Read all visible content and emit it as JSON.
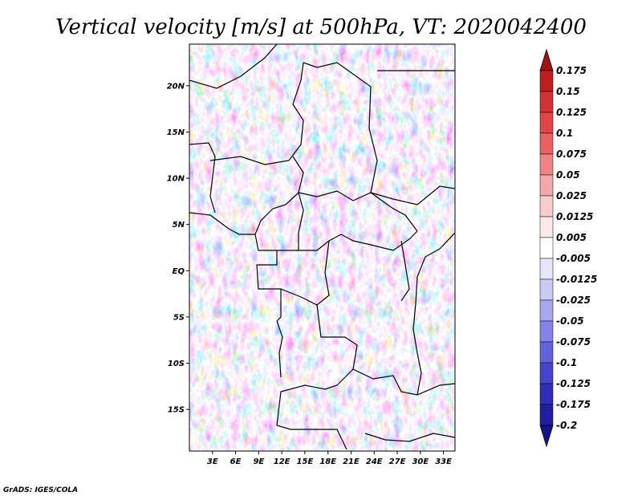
{
  "title": "Vertical velocity [m/s] at 500hPa, VT: 2020042400",
  "credit": "GrADS: IGES/COLA",
  "chart_data": {
    "type": "heatmap",
    "variable": "Vertical velocity",
    "units": "m/s",
    "level": "500hPa",
    "valid_time": "2020042400",
    "lon_range": [
      0,
      34.5
    ],
    "lat_range": [
      -19.5,
      24.5
    ],
    "x_ticks": [
      {
        "value": 3,
        "label": "3E"
      },
      {
        "value": 6,
        "label": "6E"
      },
      {
        "value": 9,
        "label": "9E"
      },
      {
        "value": 12,
        "label": "12E"
      },
      {
        "value": 15,
        "label": "15E"
      },
      {
        "value": 18,
        "label": "18E"
      },
      {
        "value": 21,
        "label": "21E"
      },
      {
        "value": 24,
        "label": "24E"
      },
      {
        "value": 27,
        "label": "27E"
      },
      {
        "value": 30,
        "label": "30E"
      },
      {
        "value": 33,
        "label": "33E"
      }
    ],
    "y_ticks": [
      {
        "value": 20,
        "label": "20N"
      },
      {
        "value": 15,
        "label": "15N"
      },
      {
        "value": 10,
        "label": "10N"
      },
      {
        "value": 5,
        "label": "5N"
      },
      {
        "value": 0,
        "label": "EQ"
      },
      {
        "value": -5,
        "label": "5S"
      },
      {
        "value": -10,
        "label": "10S"
      },
      {
        "value": -15,
        "label": "15S"
      }
    ],
    "colorbar": {
      "ticks": [
        "0.175",
        "0.15",
        "0.125",
        "0.1",
        "0.075",
        "0.05",
        "0.025",
        "0.0125",
        "0.005",
        "-0.005",
        "-0.0125",
        "-0.025",
        "-0.05",
        "-0.075",
        "-0.1",
        "-0.125",
        "-0.175",
        "-0.2"
      ],
      "colors": [
        "#a01414",
        "#be1e1e",
        "#d23232",
        "#e04646",
        "#e86262",
        "#f08484",
        "#f6a8a8",
        "#fbcccc",
        "#fee8e8",
        "#ffffff",
        "#e6e6fb",
        "#cacaf6",
        "#a8a8ef",
        "#8484e8",
        "#6262dc",
        "#4646cc",
        "#2e2eb8",
        "#1e1e9e",
        "#14148a"
      ]
    }
  }
}
